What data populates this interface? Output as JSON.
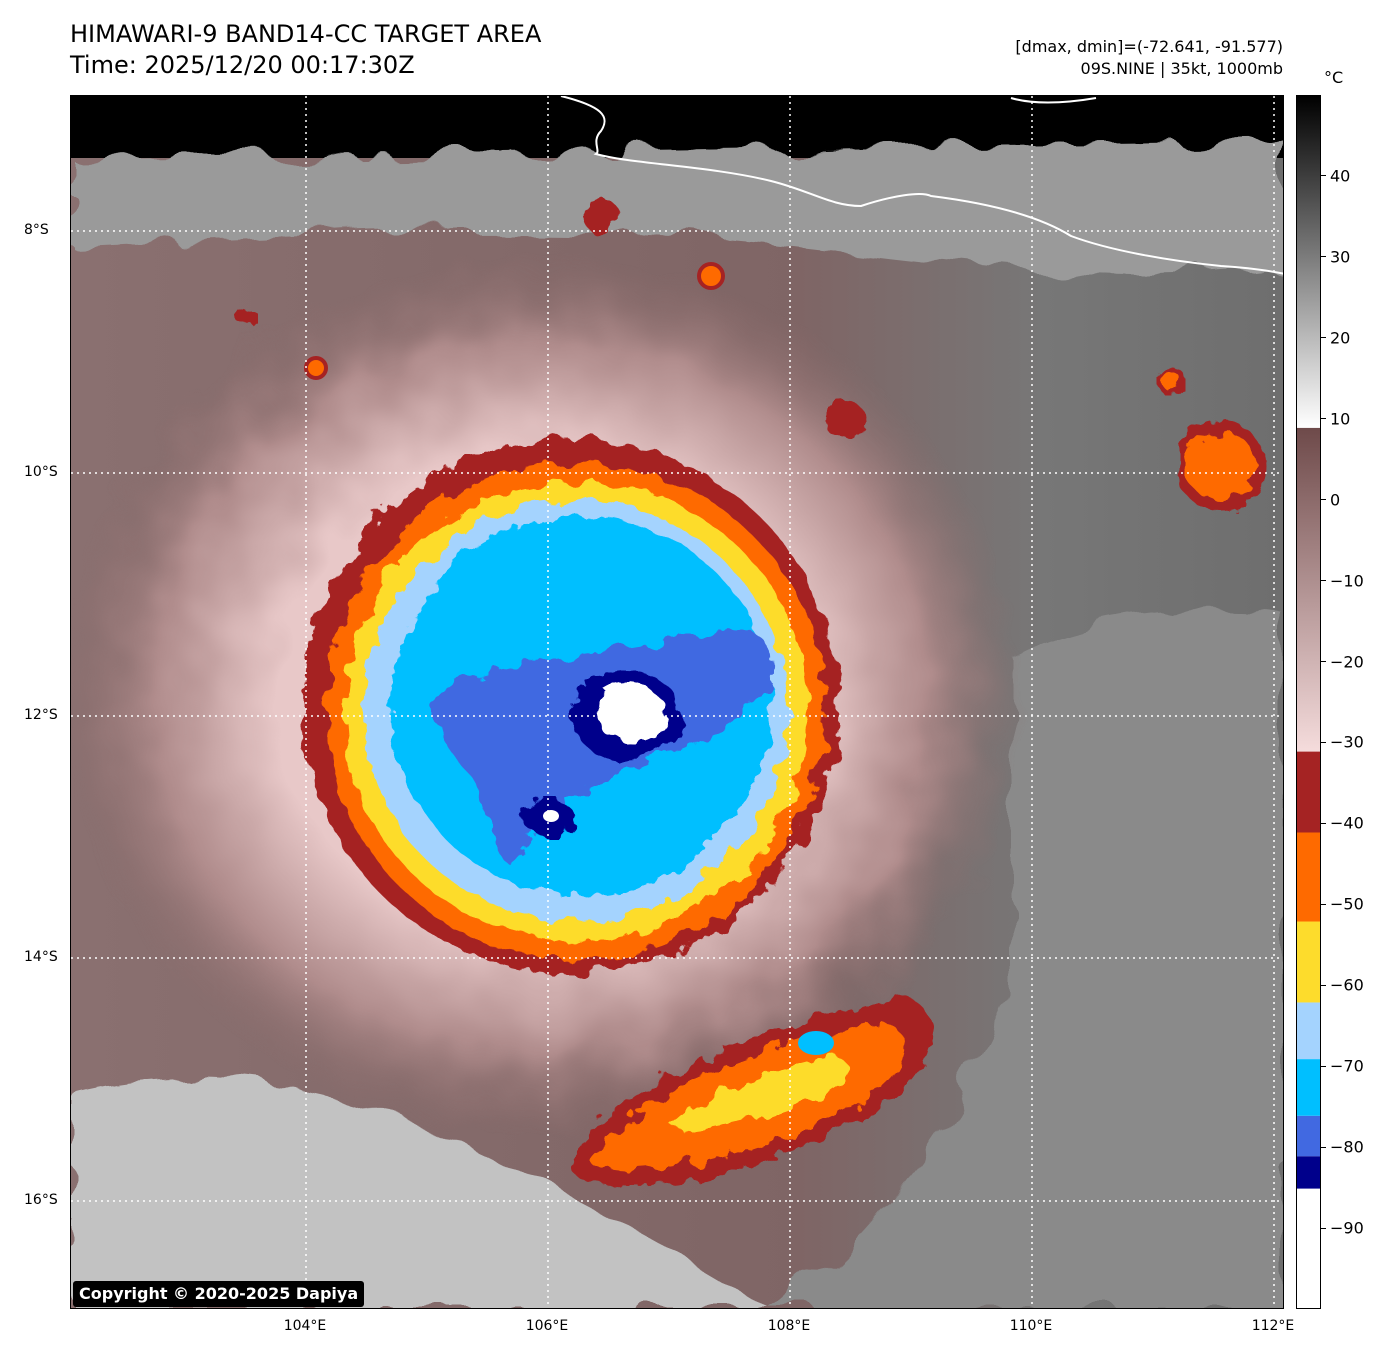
{
  "header": {
    "title": "HIMAWARI-9 BAND14-CC TARGET AREA",
    "time": "Time: 2025/12/20 00:17:30Z",
    "range": "[dmax, dmin]=(-72.641, -91.577)",
    "storm": "09S.NINE | 35kt, 1000mb"
  },
  "axes": {
    "lat_labels": [
      "8°S",
      "10°S",
      "12°S",
      "14°S",
      "16°S"
    ],
    "lon_labels": [
      "104°E",
      "106°E",
      "108°E",
      "110°E",
      "112°E"
    ]
  },
  "colorbar": {
    "unit": "°C",
    "tick_labels": [
      "40",
      "30",
      "20",
      "10",
      "0",
      "−10",
      "−20",
      "−30",
      "−40",
      "−50",
      "−60",
      "−70",
      "−80",
      "−90"
    ],
    "range": [
      -100,
      50
    ],
    "segments": [
      {
        "from": -100,
        "to": -85,
        "color": "#ffffff"
      },
      {
        "from": -85,
        "to": -81,
        "color": "#00008b"
      },
      {
        "from": -81,
        "to": -76,
        "color": "#4169e1"
      },
      {
        "from": -76,
        "to": -69,
        "color": "#00bfff"
      },
      {
        "from": -69,
        "to": -62,
        "color": "#a4d3fe"
      },
      {
        "from": -62,
        "to": -52,
        "color": "#fddc2c"
      },
      {
        "from": -52,
        "to": -41,
        "color": "#fe6a00"
      },
      {
        "from": -41,
        "to": -31,
        "color": "#a52323"
      }
    ],
    "gradient_stops": [
      {
        "value": -31,
        "color": "#f5dcdc"
      },
      {
        "value": 9,
        "color": "#6e4a4a"
      },
      {
        "value": 9.01,
        "color": "#ffffff"
      },
      {
        "value": 50,
        "color": "#000000"
      }
    ]
  },
  "colors": {
    "cloud_top_bg": "#7b7b7b",
    "band_outer": "#a52323",
    "band_orange": "#fe6a00",
    "band_yellow": "#fddc2c",
    "band_lightblue": "#a4d3fe",
    "band_cyan": "#00bfff",
    "band_royal": "#4169e1",
    "band_navy": "#00008b",
    "core_white": "#ffffff",
    "pink": "#e6c5c5",
    "brown": "#7a4f4f"
  },
  "footer": {
    "copyright": "Copyright © 2020-2025 Dapiya"
  }
}
